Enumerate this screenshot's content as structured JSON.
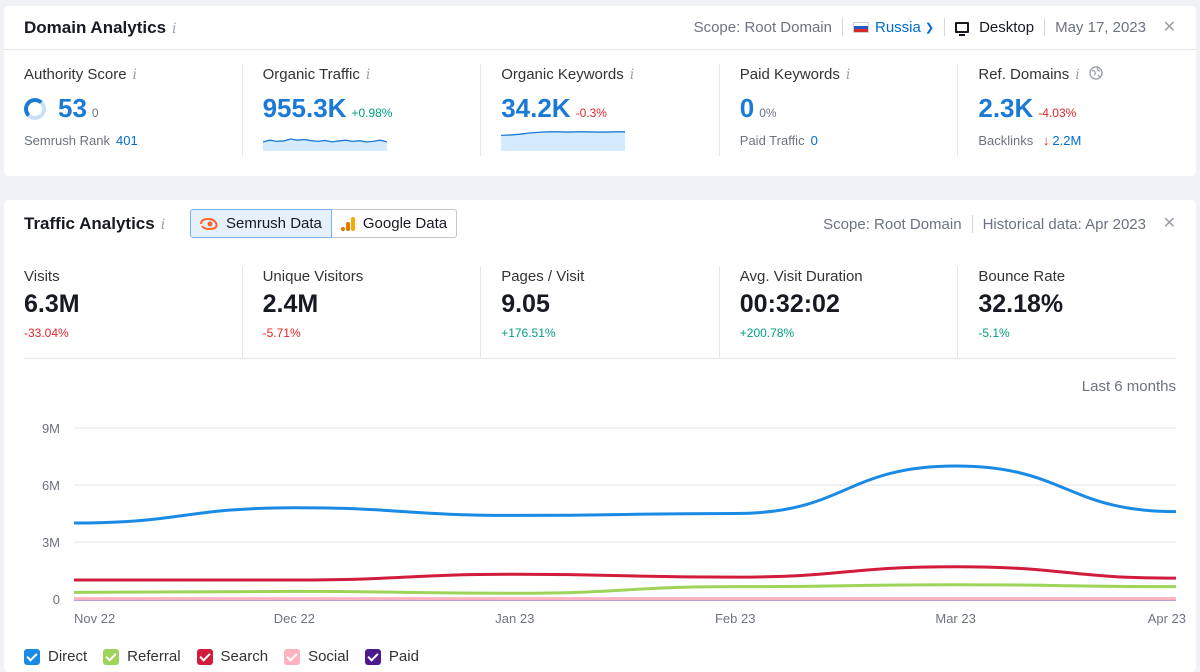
{
  "domain_analytics": {
    "title": "Domain Analytics",
    "info_icon": "i",
    "scope": "Scope: Root Domain",
    "country": "Russia",
    "device": "Desktop",
    "date": "May 17, 2023",
    "close": "✕",
    "metrics": [
      {
        "label": "Authority Score",
        "value": "53",
        "delta": "0",
        "sub_label": "Semrush Rank",
        "sub_value": "401"
      },
      {
        "label": "Organic Traffic",
        "value": "955.3K",
        "delta": "+0.98%"
      },
      {
        "label": "Organic Keywords",
        "value": "34.2K",
        "delta": "-0.3%"
      },
      {
        "label": "Paid Keywords",
        "value": "0",
        "delta": "0%",
        "sub_label": "Paid Traffic",
        "sub_value": "0"
      },
      {
        "label": "Ref. Domains",
        "value": "2.3K",
        "delta": "-4.03%",
        "sub_label": "Backlinks",
        "sub_value": "2.2M",
        "sub_arrow": "↓"
      }
    ],
    "sparklines": {
      "organic_traffic": [
        0.62,
        0.55,
        0.6,
        0.58,
        0.5,
        0.55,
        0.52,
        0.57,
        0.6,
        0.56,
        0.62,
        0.58,
        0.55,
        0.6,
        0.57,
        0.62,
        0.6,
        0.55,
        0.62
      ],
      "organic_keywords": [
        0.35,
        0.33,
        0.3,
        0.25,
        0.22,
        0.2,
        0.2,
        0.21,
        0.2,
        0.2,
        0.21,
        0.21,
        0.2,
        0.2
      ]
    },
    "colors": {
      "accent": "#1a7ad6",
      "positive": "#009f81",
      "negative": "#e0262d",
      "spark_fill": "#d3ebfb"
    }
  },
  "traffic_analytics": {
    "title": "Traffic Analytics",
    "info_icon": "i",
    "tabs": [
      {
        "label": "Semrush Data",
        "icon": "semrush-flame-icon",
        "active": true
      },
      {
        "label": "Google Data",
        "icon": "google-analytics-icon",
        "active": false
      }
    ],
    "scope": "Scope: Root Domain",
    "historical": "Historical data: Apr 2023",
    "close": "✕",
    "metrics": [
      {
        "label": "Visits",
        "value": "6.3M",
        "delta": "-33.04%"
      },
      {
        "label": "Unique Visitors",
        "value": "2.4M",
        "delta": "-5.71%"
      },
      {
        "label": "Pages / Visit",
        "value": "9.05",
        "delta": "+176.51%"
      },
      {
        "label": "Avg. Visit Duration",
        "value": "00:32:02",
        "delta": "+200.78%"
      },
      {
        "label": "Bounce Rate",
        "value": "32.18%",
        "delta": "-5.1%"
      }
    ],
    "range_label": "Last 6 months"
  },
  "chart_data": {
    "type": "line",
    "x": [
      "Nov 22",
      "Dec 22",
      "Jan 23",
      "Feb 23",
      "Mar 23",
      "Apr 23"
    ],
    "y_ticks": [
      "9M",
      "6M",
      "3M",
      "0"
    ],
    "ylim": [
      0,
      9
    ],
    "grid": true,
    "legend_position": "bottom-left",
    "series": [
      {
        "name": "Direct",
        "color": "#1a8be5",
        "values": [
          4.0,
          4.8,
          4.4,
          4.5,
          7.0,
          4.6
        ]
      },
      {
        "name": "Referral",
        "color": "#9ed45a",
        "values": [
          0.35,
          0.4,
          0.3,
          0.65,
          0.75,
          0.65
        ]
      },
      {
        "name": "Search",
        "color": "#d11c3c",
        "values": [
          1.0,
          1.0,
          1.3,
          1.15,
          1.7,
          1.1
        ]
      },
      {
        "name": "Social",
        "color": "#ffb3c1",
        "values": [
          0.02,
          0.02,
          0.02,
          0.02,
          0.02,
          0.02
        ]
      },
      {
        "name": "Paid",
        "color": "#4d1a8c",
        "values": [
          0,
          0,
          0,
          0,
          0,
          0
        ]
      }
    ]
  }
}
